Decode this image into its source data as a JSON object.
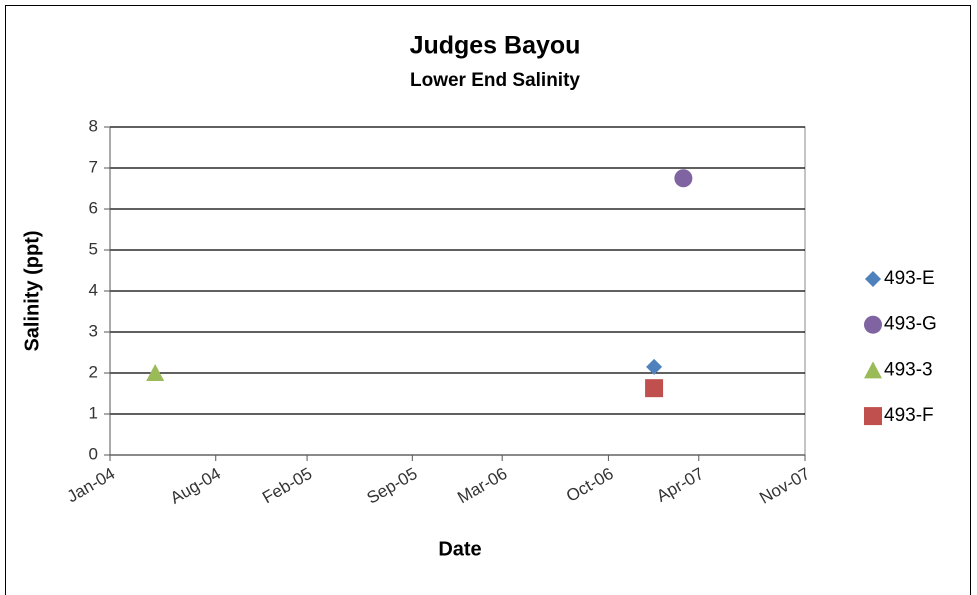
{
  "chart_data": {
    "type": "scatter",
    "title": "Judges Bayou",
    "subtitle": "Lower End Salinity",
    "x_label": "Date",
    "y_label": "Salinity (ppt)",
    "xlim": [
      "2004-01",
      "2007-11"
    ],
    "xticks": [
      {
        "value": "2004-01",
        "label": "Jan-04"
      },
      {
        "value": "2004-08",
        "label": "Aug-04"
      },
      {
        "value": "2005-02",
        "label": "Feb-05"
      },
      {
        "value": "2005-09",
        "label": "Sep-05"
      },
      {
        "value": "2006-03",
        "label": "Mar-06"
      },
      {
        "value": "2006-10",
        "label": "Oct-06"
      },
      {
        "value": "2007-04",
        "label": "Apr-07"
      },
      {
        "value": "2007-11",
        "label": "Nov-07"
      }
    ],
    "ylim": [
      0,
      8
    ],
    "yticks": [
      0,
      1,
      2,
      3,
      4,
      5,
      6,
      7,
      8
    ],
    "grid": true,
    "legend": "right",
    "series": [
      {
        "name": "493-E",
        "color": "#4f81bd",
        "marker": "diamond",
        "x": [
          "2007-01"
        ],
        "values": [
          2.15
        ]
      },
      {
        "name": "493-G",
        "color": "#8064a2",
        "marker": "circle",
        "x": [
          "2007-03"
        ],
        "values": [
          6.75
        ]
      },
      {
        "name": "493-3",
        "color": "#9bbb59",
        "marker": "triangle",
        "x": [
          "2004-04"
        ],
        "values": [
          2
        ]
      },
      {
        "name": "493-F",
        "color": "#c0504d",
        "marker": "square",
        "x": [
          "2007-01"
        ],
        "values": [
          1.63
        ]
      }
    ]
  }
}
